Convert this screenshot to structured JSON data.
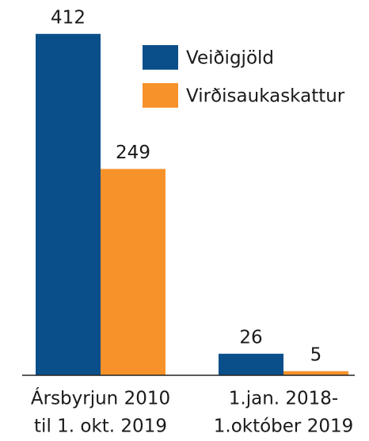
{
  "chart_data": {
    "type": "bar",
    "categories": [
      [
        "Ársbyrjun 2010",
        "til 1. okt. 2019"
      ],
      [
        "1.jan. 2018-",
        "1.október 2019"
      ]
    ],
    "series": [
      {
        "name": "Veiðigjöld",
        "color": "#0b4f8a",
        "values": [
          412,
          26
        ]
      },
      {
        "name": "Virðisaukaskattur",
        "color": "#f7922a",
        "values": [
          249,
          5
        ]
      }
    ],
    "ylim": [
      0,
      450
    ],
    "legend": "top-right"
  }
}
